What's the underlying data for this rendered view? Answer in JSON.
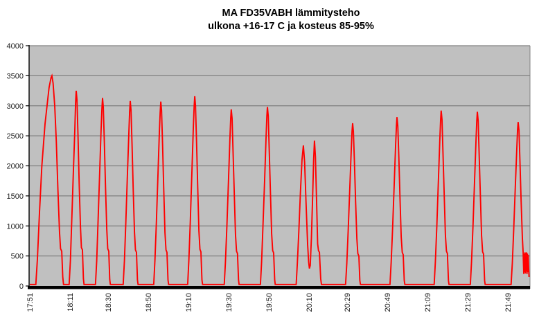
{
  "page": {
    "background": "#ffffff"
  },
  "chart_data": {
    "type": "line",
    "title": "MA FD35VABH lämmitysteho",
    "subtitle": "ulkona +16-17 C ja kosteus 85-95%",
    "xlabel": "",
    "ylabel": "",
    "legend_position": "none",
    "grid": "horizontal",
    "plot_bg_color": "#c0c0c0",
    "grid_color": "#808080",
    "axis_color": "#000000",
    "ylim": [
      0,
      4000
    ],
    "y_ticks": [
      0,
      500,
      1000,
      1500,
      2000,
      2500,
      3000,
      3500,
      4000
    ],
    "x_unit": "minutes since 17:51",
    "xlim": [
      0,
      249
    ],
    "x_ticks": [
      {
        "t": 0,
        "label": "17:51"
      },
      {
        "t": 20,
        "label": "18:11"
      },
      {
        "t": 39,
        "label": "18:30"
      },
      {
        "t": 59,
        "label": "18:50"
      },
      {
        "t": 79,
        "label": "19:10"
      },
      {
        "t": 99,
        "label": "19:30"
      },
      {
        "t": 119,
        "label": "19:50"
      },
      {
        "t": 139,
        "label": "20:10"
      },
      {
        "t": 158,
        "label": "20:29"
      },
      {
        "t": 178,
        "label": "20:49"
      },
      {
        "t": 198,
        "label": "21:09"
      },
      {
        "t": 218,
        "label": "21:29"
      },
      {
        "t": 238,
        "label": "21:49"
      }
    ],
    "series": [
      {
        "name": "lämmitysteho",
        "color": "#ff0000",
        "peak_values": [
          3500,
          3250,
          3130,
          3080,
          3070,
          3160,
          2940,
          2980,
          2340,
          2420,
          2710,
          2810,
          2920,
          2900,
          2730
        ],
        "points": [
          [
            0,
            25
          ],
          [
            3.0,
            25
          ],
          [
            3.8,
            450
          ],
          [
            4.8,
            1200
          ],
          [
            6.0,
            2000
          ],
          [
            7.6,
            2700
          ],
          [
            9.6,
            3300
          ],
          [
            10.6,
            3470
          ],
          [
            11,
            3500
          ],
          [
            11.6,
            3380
          ],
          [
            12.4,
            3000
          ],
          [
            13.2,
            2400
          ],
          [
            14,
            1600
          ],
          [
            14.8,
            900
          ],
          [
            15.3,
            620
          ],
          [
            15.9,
            580
          ],
          [
            16.4,
            150
          ],
          [
            16.8,
            25
          ],
          [
            19.6,
            25
          ],
          [
            20.2,
            420
          ],
          [
            20.9,
            1100
          ],
          [
            21.7,
            1900
          ],
          [
            22.4,
            2600
          ],
          [
            22.8,
            3050
          ],
          [
            23.1,
            3250
          ],
          [
            23.5,
            3100
          ],
          [
            24,
            2500
          ],
          [
            24.6,
            1700
          ],
          [
            25.2,
            1000
          ],
          [
            25.7,
            640
          ],
          [
            26.2,
            600
          ],
          [
            26.7,
            120
          ],
          [
            27,
            25
          ],
          [
            32.7,
            25
          ],
          [
            33.3,
            420
          ],
          [
            34,
            1100
          ],
          [
            34.8,
            1900
          ],
          [
            35.5,
            2600
          ],
          [
            35.9,
            2950
          ],
          [
            36.2,
            3130
          ],
          [
            36.6,
            2980
          ],
          [
            37.1,
            2400
          ],
          [
            37.7,
            1650
          ],
          [
            38.3,
            950
          ],
          [
            38.8,
            620
          ],
          [
            39.3,
            580
          ],
          [
            39.8,
            110
          ],
          [
            40.1,
            25
          ],
          [
            46.5,
            25
          ],
          [
            47.1,
            420
          ],
          [
            47.8,
            1050
          ],
          [
            48.6,
            1850
          ],
          [
            49.3,
            2550
          ],
          [
            49.7,
            2900
          ],
          [
            50,
            3080
          ],
          [
            50.4,
            2930
          ],
          [
            50.9,
            2350
          ],
          [
            51.5,
            1600
          ],
          [
            52.1,
            900
          ],
          [
            52.6,
            600
          ],
          [
            53.1,
            560
          ],
          [
            53.6,
            100
          ],
          [
            53.9,
            25
          ],
          [
            61.7,
            25
          ],
          [
            62.3,
            420
          ],
          [
            63,
            1050
          ],
          [
            63.8,
            1850
          ],
          [
            64.5,
            2550
          ],
          [
            64.9,
            2890
          ],
          [
            65.2,
            3070
          ],
          [
            65.6,
            2920
          ],
          [
            66.1,
            2340
          ],
          [
            66.7,
            1590
          ],
          [
            67.3,
            890
          ],
          [
            67.8,
            600
          ],
          [
            68.3,
            560
          ],
          [
            68.8,
            100
          ],
          [
            69.1,
            25
          ],
          [
            78.6,
            25
          ],
          [
            79.2,
            430
          ],
          [
            79.9,
            1080
          ],
          [
            80.7,
            1900
          ],
          [
            81.4,
            2620
          ],
          [
            81.8,
            2980
          ],
          [
            82.1,
            3160
          ],
          [
            82.5,
            3000
          ],
          [
            83,
            2400
          ],
          [
            83.6,
            1640
          ],
          [
            84.2,
            920
          ],
          [
            84.7,
            610
          ],
          [
            85.2,
            570
          ],
          [
            85.7,
            100
          ],
          [
            86,
            25
          ],
          [
            96.8,
            25
          ],
          [
            97.4,
            400
          ],
          [
            98.1,
            1000
          ],
          [
            98.9,
            1750
          ],
          [
            99.6,
            2430
          ],
          [
            100,
            2790
          ],
          [
            100.3,
            2940
          ],
          [
            100.7,
            2790
          ],
          [
            101.2,
            2240
          ],
          [
            101.8,
            1520
          ],
          [
            102.4,
            860
          ],
          [
            102.9,
            580
          ],
          [
            103.4,
            540
          ],
          [
            103.9,
            100
          ],
          [
            104.2,
            25
          ],
          [
            114.8,
            25
          ],
          [
            115.4,
            400
          ],
          [
            116.1,
            1010
          ],
          [
            116.9,
            1770
          ],
          [
            117.6,
            2460
          ],
          [
            118,
            2830
          ],
          [
            118.3,
            2980
          ],
          [
            118.7,
            2830
          ],
          [
            119.2,
            2270
          ],
          [
            119.8,
            1540
          ],
          [
            120.4,
            870
          ],
          [
            120.9,
            590
          ],
          [
            121.4,
            550
          ],
          [
            121.9,
            100
          ],
          [
            122.2,
            25
          ],
          [
            132.6,
            25
          ],
          [
            133.2,
            380
          ],
          [
            133.9,
            900
          ],
          [
            134.7,
            1550
          ],
          [
            135.5,
            2100
          ],
          [
            136.2,
            2340
          ],
          [
            136.8,
            2060
          ],
          [
            137.5,
            1400
          ],
          [
            138.3,
            700
          ],
          [
            138.8,
            400
          ],
          [
            139.2,
            290
          ],
          [
            139.6,
            340
          ],
          [
            140.2,
            800
          ],
          [
            140.8,
            1500
          ],
          [
            141.3,
            2100
          ],
          [
            141.7,
            2420
          ],
          [
            142.2,
            2150
          ],
          [
            142.8,
            1350
          ],
          [
            143.3,
            700
          ],
          [
            143.7,
            590
          ],
          [
            144.2,
            560
          ],
          [
            144.8,
            120
          ],
          [
            145.2,
            25
          ],
          [
            157.2,
            25
          ],
          [
            157.8,
            380
          ],
          [
            158.5,
            930
          ],
          [
            159.3,
            1630
          ],
          [
            160,
            2240
          ],
          [
            160.4,
            2570
          ],
          [
            160.7,
            2710
          ],
          [
            161.1,
            2570
          ],
          [
            161.6,
            2060
          ],
          [
            162.2,
            1400
          ],
          [
            162.8,
            790
          ],
          [
            163.3,
            540
          ],
          [
            163.8,
            500
          ],
          [
            164.3,
            90
          ],
          [
            164.6,
            25
          ],
          [
            179.3,
            25
          ],
          [
            179.9,
            390
          ],
          [
            180.6,
            960
          ],
          [
            181.4,
            1690
          ],
          [
            182.1,
            2330
          ],
          [
            182.5,
            2660
          ],
          [
            182.8,
            2810
          ],
          [
            183.2,
            2660
          ],
          [
            183.7,
            2140
          ],
          [
            184.3,
            1450
          ],
          [
            184.9,
            820
          ],
          [
            185.4,
            560
          ],
          [
            185.9,
            520
          ],
          [
            186.4,
            90
          ],
          [
            186.7,
            25
          ],
          [
            201.3,
            25
          ],
          [
            201.9,
            400
          ],
          [
            202.6,
            990
          ],
          [
            203.4,
            1760
          ],
          [
            204.1,
            2420
          ],
          [
            204.5,
            2770
          ],
          [
            204.8,
            2920
          ],
          [
            205.2,
            2770
          ],
          [
            205.7,
            2220
          ],
          [
            206.3,
            1510
          ],
          [
            206.9,
            850
          ],
          [
            207.4,
            580
          ],
          [
            207.9,
            540
          ],
          [
            208.4,
            90
          ],
          [
            208.7,
            25
          ],
          [
            219.3,
            25
          ],
          [
            219.9,
            400
          ],
          [
            220.6,
            990
          ],
          [
            221.4,
            1750
          ],
          [
            222.1,
            2400
          ],
          [
            222.5,
            2750
          ],
          [
            222.8,
            2900
          ],
          [
            223.2,
            2750
          ],
          [
            223.7,
            2200
          ],
          [
            224.3,
            1500
          ],
          [
            224.9,
            840
          ],
          [
            225.4,
            570
          ],
          [
            225.9,
            530
          ],
          [
            226.4,
            90
          ],
          [
            226.7,
            25
          ],
          [
            239.6,
            25
          ],
          [
            240.2,
            380
          ],
          [
            240.9,
            940
          ],
          [
            241.7,
            1650
          ],
          [
            242.4,
            2270
          ],
          [
            242.8,
            2590
          ],
          [
            243.1,
            2730
          ],
          [
            243.5,
            2590
          ],
          [
            244,
            2080
          ],
          [
            244.6,
            1410
          ],
          [
            245.2,
            800
          ],
          [
            245.6,
            560
          ],
          [
            245.9,
            200
          ],
          [
            246.1,
            540
          ],
          [
            246.3,
            230
          ],
          [
            246.5,
            560
          ],
          [
            246.7,
            210
          ],
          [
            246.9,
            550
          ],
          [
            247.1,
            240
          ],
          [
            247.3,
            560
          ],
          [
            247.5,
            200
          ],
          [
            247.7,
            540
          ],
          [
            247.9,
            230
          ],
          [
            248.1,
            520
          ],
          [
            248.3,
            300
          ],
          [
            248.5,
            150
          ]
        ]
      }
    ]
  }
}
